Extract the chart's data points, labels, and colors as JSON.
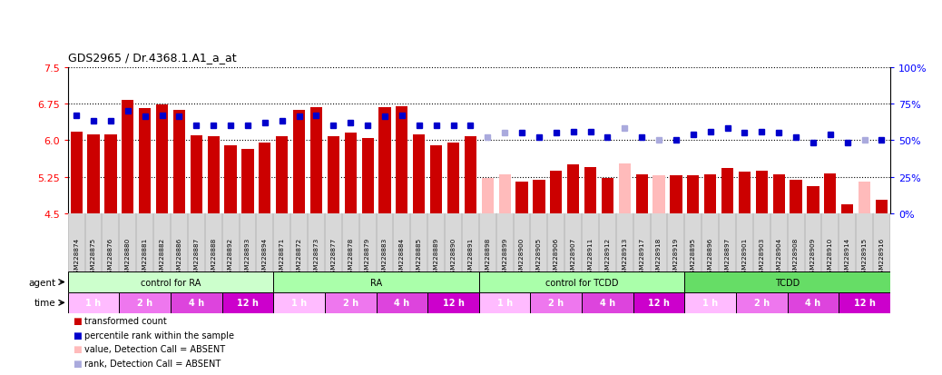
{
  "title": "GDS2965 / Dr.4368.1.A1_a_at",
  "ylim": [
    4.5,
    7.5
  ],
  "yticks": [
    4.5,
    5.25,
    6.0,
    6.75,
    7.5
  ],
  "right_yticks": [
    0,
    25,
    50,
    75,
    100
  ],
  "right_ylabels": [
    "0%",
    "25%",
    "50%",
    "75%",
    "100%"
  ],
  "samples": [
    "GSM228874",
    "GSM228875",
    "GSM228876",
    "GSM228880",
    "GSM228881",
    "GSM228882",
    "GSM228886",
    "GSM228887",
    "GSM228888",
    "GSM228892",
    "GSM228893",
    "GSM228894",
    "GSM228871",
    "GSM228872",
    "GSM228873",
    "GSM228877",
    "GSM228878",
    "GSM228879",
    "GSM228883",
    "GSM228884",
    "GSM228885",
    "GSM228889",
    "GSM228890",
    "GSM228891",
    "GSM228898",
    "GSM228899",
    "GSM228900",
    "GSM228905",
    "GSM228906",
    "GSM228907",
    "GSM228911",
    "GSM228912",
    "GSM228913",
    "GSM228917",
    "GSM228918",
    "GSM228919",
    "GSM228895",
    "GSM228896",
    "GSM228897",
    "GSM228901",
    "GSM228903",
    "GSM228904",
    "GSM228908",
    "GSM228909",
    "GSM228910",
    "GSM228914",
    "GSM228915",
    "GSM228916"
  ],
  "bar_values": [
    6.18,
    6.12,
    6.12,
    6.82,
    6.65,
    6.72,
    6.62,
    6.1,
    6.08,
    5.9,
    5.82,
    5.95,
    6.08,
    6.62,
    6.68,
    6.08,
    6.15,
    6.05,
    6.68,
    6.7,
    6.12,
    5.9,
    5.95,
    6.08,
    5.22,
    5.3,
    5.15,
    5.18,
    5.38,
    5.5,
    5.45,
    5.22,
    5.52,
    5.3,
    5.28,
    5.28,
    5.28,
    5.3,
    5.42,
    5.35,
    5.38,
    5.3,
    5.18,
    5.05,
    5.32,
    4.68,
    5.15,
    4.78
  ],
  "rank_values": [
    67,
    63,
    63,
    70,
    66,
    67,
    66,
    60,
    60,
    60,
    60,
    62,
    63,
    66,
    67,
    60,
    62,
    60,
    66,
    67,
    60,
    60,
    60,
    60,
    52,
    55,
    55,
    52,
    55,
    56,
    56,
    52,
    58,
    52,
    50,
    50,
    54,
    56,
    58,
    55,
    56,
    55,
    52,
    48,
    54,
    48,
    50,
    50
  ],
  "absent_mask": [
    false,
    false,
    false,
    false,
    false,
    false,
    false,
    false,
    false,
    false,
    false,
    false,
    false,
    false,
    false,
    false,
    false,
    false,
    false,
    false,
    false,
    false,
    false,
    false,
    true,
    true,
    false,
    false,
    false,
    false,
    false,
    false,
    true,
    false,
    true,
    false,
    false,
    false,
    false,
    false,
    false,
    false,
    false,
    false,
    false,
    false,
    true,
    false
  ],
  "agent_groups": [
    {
      "label": "control for RA",
      "start": 0,
      "end": 12,
      "color": "#ccffcc"
    },
    {
      "label": "RA",
      "start": 12,
      "end": 24,
      "color": "#aaffaa"
    },
    {
      "label": "control for TCDD",
      "start": 24,
      "end": 36,
      "color": "#aaffaa"
    },
    {
      "label": "TCDD",
      "start": 36,
      "end": 48,
      "color": "#66dd66"
    }
  ],
  "time_groups": [
    {
      "label": "1 h",
      "start": 0,
      "end": 3
    },
    {
      "label": "2 h",
      "start": 3,
      "end": 6
    },
    {
      "label": "4 h",
      "start": 6,
      "end": 9
    },
    {
      "label": "12 h",
      "start": 9,
      "end": 12
    },
    {
      "label": "1 h",
      "start": 12,
      "end": 15
    },
    {
      "label": "2 h",
      "start": 15,
      "end": 18
    },
    {
      "label": "4 h",
      "start": 18,
      "end": 21
    },
    {
      "label": "12 h",
      "start": 21,
      "end": 24
    },
    {
      "label": "1 h",
      "start": 24,
      "end": 27
    },
    {
      "label": "2 h",
      "start": 27,
      "end": 30
    },
    {
      "label": "4 h",
      "start": 30,
      "end": 33
    },
    {
      "label": "12 h",
      "start": 33,
      "end": 36
    },
    {
      "label": "1 h",
      "start": 36,
      "end": 39
    },
    {
      "label": "2 h",
      "start": 39,
      "end": 42
    },
    {
      "label": "4 h",
      "start": 42,
      "end": 45
    },
    {
      "label": "12 h",
      "start": 45,
      "end": 48
    }
  ],
  "bar_color_present": "#cc0000",
  "bar_color_absent": "#ffbbbb",
  "rank_color_present": "#0000cc",
  "rank_color_absent": "#aaaadd",
  "background_color": "#ffffff",
  "xticklabel_bg": "#d8d8d8",
  "agent_row_bg": "#ffffff",
  "time_color_1h": "#ffbbff",
  "time_color_2h": "#ee77ee",
  "time_color_4h": "#dd44dd",
  "time_color_12h": "#cc00cc"
}
